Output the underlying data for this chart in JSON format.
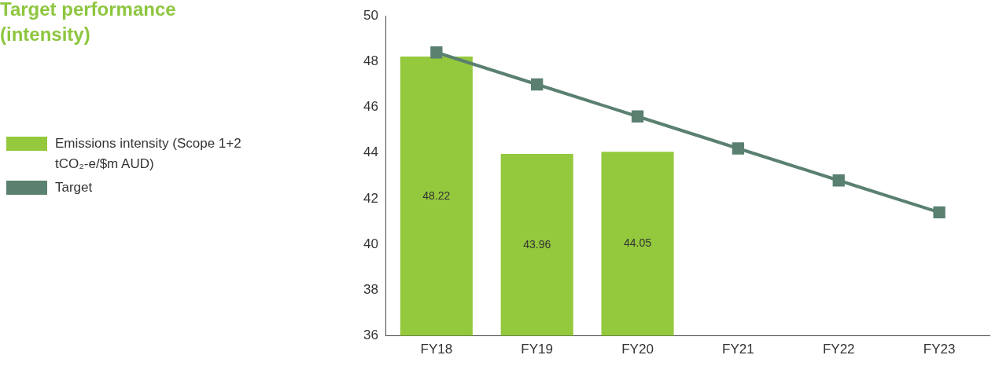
{
  "chart_data": {
    "type": "bar",
    "title": "Target performance (intensity)",
    "categories": [
      "FY18",
      "FY19",
      "FY20",
      "FY21",
      "FY22",
      "FY23"
    ],
    "series": [
      {
        "name": "Emissions intensity (Scope 1+2 tCO₂-e/$m AUD)",
        "color": "#94c83d",
        "values": [
          48.22,
          43.96,
          44.05,
          null,
          null,
          null
        ],
        "value_labels": [
          "48.22",
          "43.96",
          "44.05",
          null,
          null,
          null
        ]
      },
      {
        "name": "Target",
        "type": "line",
        "color": "#5a8070",
        "values": [
          48.4,
          47.0,
          45.6,
          44.2,
          42.8,
          41.4
        ],
        "marker": "square"
      }
    ],
    "ylim": [
      36,
      50
    ],
    "yticks": [
      36,
      38,
      40,
      42,
      44,
      46,
      48,
      50
    ],
    "grid": false,
    "legend": "left"
  }
}
